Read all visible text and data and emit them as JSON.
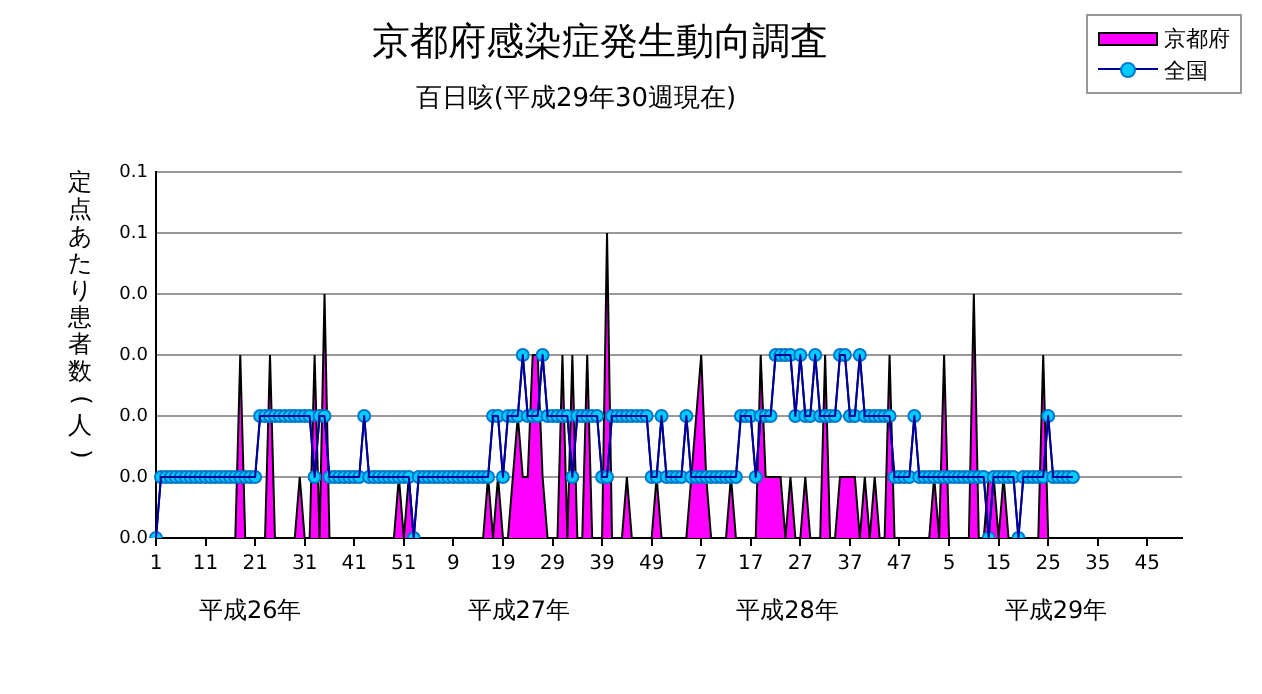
{
  "chart_data": {
    "type": "line",
    "title": "京都府感染症発生動向調査",
    "subtitle": "百日咳(平成29年30週現在)",
    "ylabel": "定点あたり患者数(人)",
    "annotations": [
      "平成26年",
      "平成27年",
      "平成28年",
      "平成29年"
    ],
    "categories": [
      "1",
      null,
      null,
      null,
      null,
      null,
      null,
      null,
      null,
      null,
      "11",
      null,
      null,
      null,
      null,
      null,
      null,
      null,
      null,
      null,
      "21",
      null,
      null,
      null,
      null,
      null,
      null,
      null,
      null,
      null,
      "31",
      null,
      null,
      null,
      null,
      null,
      null,
      null,
      null,
      null,
      "41",
      null,
      null,
      null,
      null,
      null,
      null,
      null,
      null,
      null,
      "51",
      null,
      null,
      null,
      null,
      null,
      null,
      null,
      null,
      null,
      "9",
      null,
      null,
      null,
      null,
      null,
      null,
      null,
      null,
      null,
      "19",
      null,
      null,
      null,
      null,
      null,
      null,
      null,
      null,
      null,
      "29",
      null,
      null,
      null,
      null,
      null,
      null,
      null,
      null,
      null,
      "39",
      null,
      null,
      null,
      null,
      null,
      null,
      null,
      null,
      null,
      "49",
      null,
      null,
      null,
      null,
      null,
      null,
      null,
      null,
      null,
      "7",
      null,
      null,
      null,
      null,
      null,
      null,
      null,
      null,
      null,
      "17",
      null,
      null,
      null,
      null,
      null,
      null,
      null,
      null,
      null,
      "27",
      null,
      null,
      null,
      null,
      null,
      null,
      null,
      null,
      null,
      "37",
      null,
      null,
      null,
      null,
      null,
      null,
      null,
      null,
      null,
      "47",
      null,
      null,
      null,
      null,
      null,
      null,
      null,
      null,
      null,
      "5",
      null,
      null,
      null,
      null,
      null,
      null,
      null,
      null,
      null,
      "15",
      null,
      null,
      null,
      null,
      null,
      null,
      null,
      null,
      null,
      "25",
      null,
      null,
      null,
      null,
      null,
      null,
      null,
      null,
      null,
      "35",
      null,
      null,
      null,
      null,
      null,
      null,
      null,
      null,
      null,
      "45",
      null,
      null,
      null,
      null,
      null,
      null,
      null
    ],
    "series": [
      {
        "name": "京都府",
        "type": "area",
        "color": "#ff00ff",
        "values": [
          0,
          0,
          0,
          0,
          0,
          0,
          0,
          0,
          0,
          0,
          0,
          0,
          0,
          0,
          0,
          0,
          0,
          0.03,
          0,
          0,
          0,
          0,
          0,
          0.03,
          0,
          0,
          0,
          0,
          0,
          0.01,
          0,
          0,
          0.03,
          0,
          0.04,
          0,
          0,
          0,
          0,
          0,
          0,
          0,
          0,
          0,
          0,
          0,
          0,
          0,
          0,
          0.01,
          0,
          0.01,
          0,
          0,
          0,
          0,
          0,
          0,
          0,
          0,
          0,
          0,
          0,
          0,
          0,
          0,
          0,
          0.01,
          0,
          0.01,
          0,
          0,
          0.01,
          0.02,
          0.01,
          0.01,
          0.03,
          0.03,
          0.01,
          0,
          0,
          0,
          0.03,
          0,
          0.03,
          0,
          0,
          0.03,
          0,
          0,
          0,
          0.05,
          0,
          0,
          0,
          0.01,
          0,
          0,
          0,
          0,
          0,
          0.01,
          0,
          0,
          0,
          0,
          0,
          0,
          0.01,
          0.02,
          0.03,
          0.01,
          0,
          0,
          0,
          0,
          0.01,
          0,
          0,
          0,
          0,
          0,
          0.03,
          0.01,
          0.01,
          0.01,
          0.01,
          0,
          0.01,
          0,
          0,
          0.01,
          0,
          0,
          0,
          0.03,
          0,
          0,
          0.01,
          0.01,
          0.01,
          0.01,
          0,
          0.01,
          0,
          0.01,
          0,
          0,
          0.03,
          0,
          0,
          0,
          0,
          0,
          0,
          0,
          0,
          0.01,
          0,
          0.03,
          0,
          0,
          0,
          0,
          0,
          0.04,
          0,
          0,
          0.01,
          0.01,
          0,
          0.01,
          0,
          0,
          0,
          0,
          0,
          0,
          0,
          0.03,
          0,
          0,
          0,
          0,
          0,
          0,
          null,
          null,
          null,
          null,
          null,
          null,
          null,
          null,
          null,
          null,
          null,
          null,
          null,
          null,
          null,
          null,
          null,
          null,
          null,
          null,
          null,
          null
        ]
      },
      {
        "name": "全国",
        "type": "line",
        "marker": "circle",
        "color": "#00ccff",
        "values": [
          0,
          0.01,
          0.01,
          0.01,
          0.01,
          0.01,
          0.01,
          0.01,
          0.01,
          0.01,
          0.01,
          0.01,
          0.01,
          0.01,
          0.01,
          0.01,
          0.01,
          0.01,
          0.01,
          0.01,
          0.01,
          0.02,
          0.02,
          0.02,
          0.02,
          0.02,
          0.02,
          0.02,
          0.02,
          0.02,
          0.02,
          0.02,
          0.01,
          0.02,
          0.02,
          0.01,
          0.01,
          0.01,
          0.01,
          0.01,
          0.01,
          0.01,
          0.02,
          0.01,
          0.01,
          0.01,
          0.01,
          0.01,
          0.01,
          0.01,
          0.01,
          0.01,
          0,
          0.01,
          0.01,
          0.01,
          0.01,
          0.01,
          0.01,
          0.01,
          0.01,
          0.01,
          0.01,
          0.01,
          0.01,
          0.01,
          0.01,
          0.01,
          0.02,
          0.02,
          0.01,
          0.02,
          0.02,
          0.02,
          0.03,
          0.02,
          0.02,
          0.02,
          0.03,
          0.02,
          0.02,
          0.02,
          0.02,
          0.02,
          0.01,
          0.02,
          0.02,
          0.02,
          0.02,
          0.02,
          0.01,
          0.01,
          0.02,
          0.02,
          0.02,
          0.02,
          0.02,
          0.02,
          0.02,
          0.02,
          0.01,
          0.01,
          0.02,
          0.01,
          0.01,
          0.01,
          0.01,
          0.02,
          0.01,
          0.01,
          0.01,
          0.01,
          0.01,
          0.01,
          0.01,
          0.01,
          0.01,
          0.01,
          0.02,
          0.02,
          0.02,
          0.01,
          0.02,
          0.02,
          0.02,
          0.03,
          0.03,
          0.03,
          0.03,
          0.02,
          0.03,
          0.02,
          0.02,
          0.03,
          0.02,
          0.02,
          0.02,
          0.02,
          0.03,
          0.03,
          0.02,
          0.02,
          0.03,
          0.02,
          0.02,
          0.02,
          0.02,
          0.02,
          0.02,
          0.01,
          0.01,
          0.01,
          0.01,
          0.02,
          0.01,
          0.01,
          0.01,
          0.01,
          0.01,
          0.01,
          0.01,
          0.01,
          0.01,
          0.01,
          0.01,
          0.01,
          0.01,
          0.01,
          0,
          0.01,
          0.01,
          0.01,
          0.01,
          0.01,
          0,
          0.01,
          0.01,
          0.01,
          0.01,
          0.01,
          0.02,
          0.01,
          0.01,
          0.01,
          0.01,
          0.01,
          null,
          null,
          null,
          null,
          null,
          null,
          null,
          null,
          null,
          null,
          null,
          null,
          null,
          null,
          null,
          null,
          null,
          null,
          null,
          null,
          null,
          null
        ]
      }
    ],
    "ylim": [
      0,
      0.06
    ],
    "yticks": [
      {
        "value": 0,
        "label": "0.0"
      },
      {
        "value": 0.01,
        "label": "0.0"
      },
      {
        "value": 0.02,
        "label": "0.0"
      },
      {
        "value": 0.03,
        "label": "0.0"
      },
      {
        "value": 0.04,
        "label": "0.0"
      },
      {
        "value": 0.05,
        "label": "0.1"
      },
      {
        "value": 0.06,
        "label": "0.1"
      }
    ],
    "grid": "y",
    "legend": "top right",
    "line_style": "solid"
  }
}
